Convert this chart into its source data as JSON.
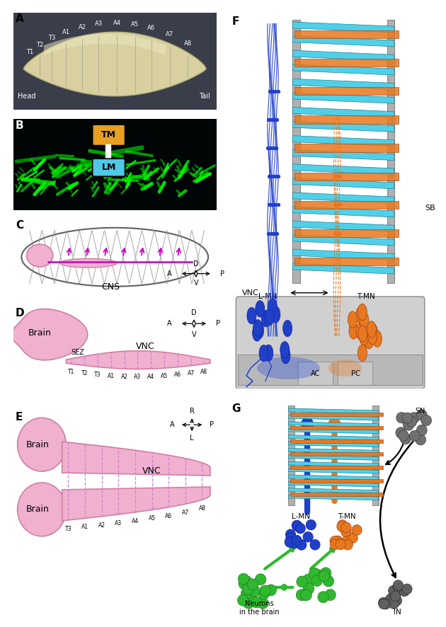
{
  "pink": "#f0b0d0",
  "pink_edge": "#d080a0",
  "cyan": "#50d0e8",
  "cyan_edge": "#208090",
  "orange": "#e87820",
  "orange_edge": "#a04010",
  "blue": "#2040c8",
  "green": "#30b830",
  "gray_rail": "#b0b0b0",
  "gray_vnc": "#c8c8c8",
  "gray_dark": "#888888",
  "magenta": "#cc00cc",
  "dashed_pink": "#cc88cc",
  "panel_labels": [
    "A",
    "B",
    "C",
    "D",
    "E",
    "F",
    "G"
  ],
  "seg_labels_full": [
    "T1",
    "T2",
    "T3",
    "A1",
    "A2",
    "A3",
    "A4",
    "A5",
    "A6",
    "A7",
    "A8"
  ],
  "seg_labels_d": [
    "T1",
    "T2",
    "T3",
    "A1",
    "A2",
    "A3",
    "A4",
    "A5",
    "A6",
    "A7",
    "A8"
  ],
  "seg_labels_e": [
    "T3",
    "A1",
    "A2",
    "A3",
    "A4",
    "A5",
    "A6",
    "A7",
    "A8"
  ]
}
